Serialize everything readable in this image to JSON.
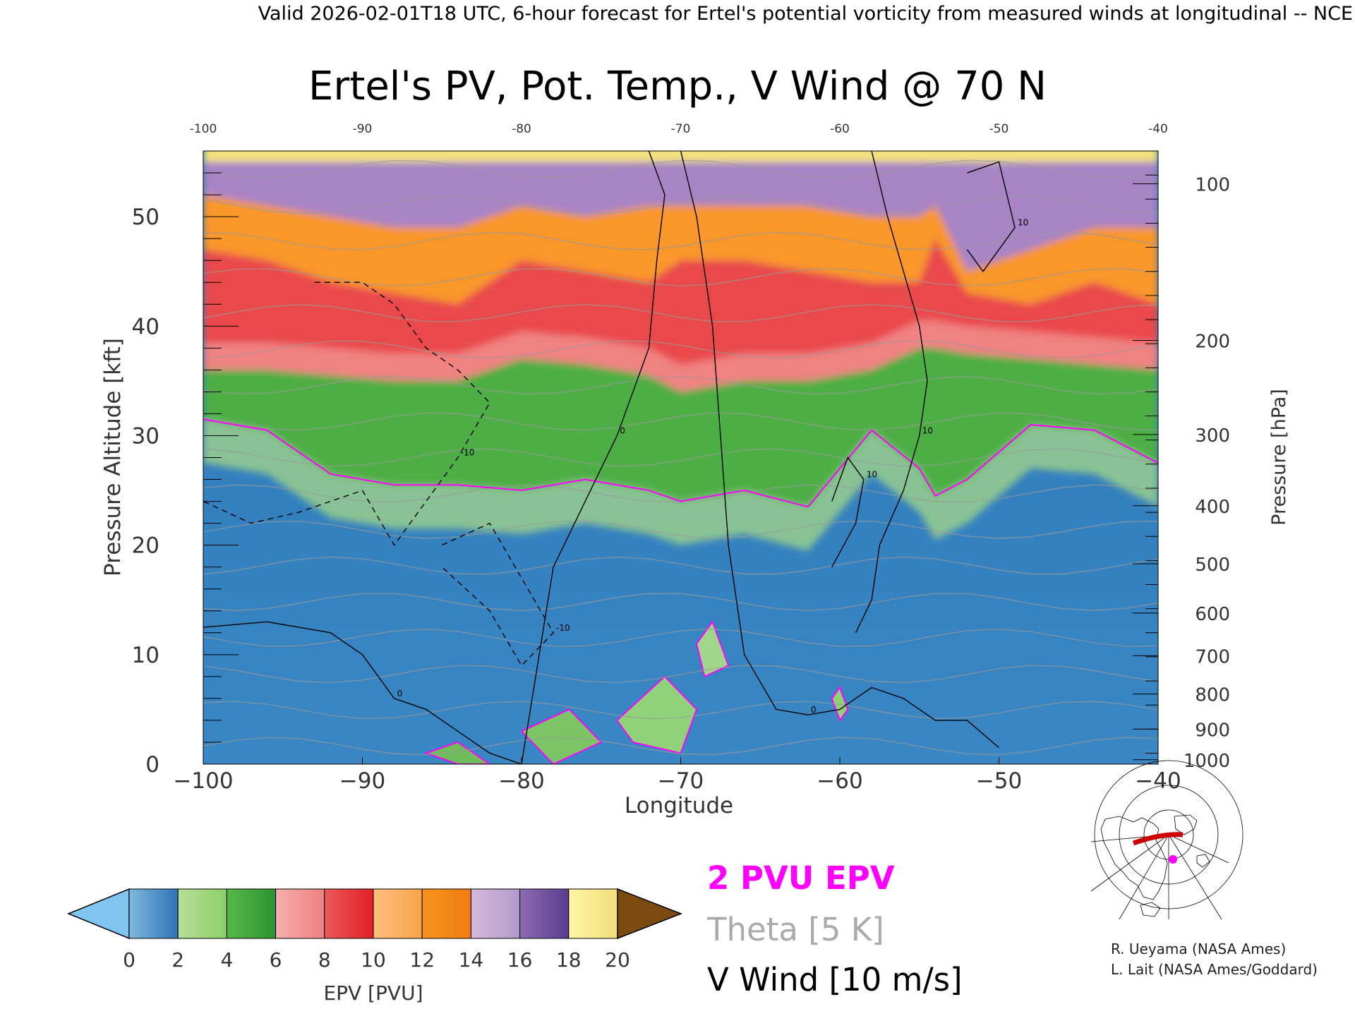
{
  "header": {
    "valid_line": "Valid 2026-02-01T18 UTC, 6-hour forecast for Ertel's potential vorticity from measured winds at longitudinal -- NCE"
  },
  "chart_data": {
    "type": "heatmap",
    "title": "Ertel's PV, Pot. Temp., V Wind @ 70 N",
    "xlabel": "Longitude",
    "ylabel": "Pressure Altitude [kft]",
    "ylabel_right": "Pressure [hPa]",
    "xlim": [
      -100,
      -40
    ],
    "ylim": [
      0,
      56
    ],
    "x_ticks": [
      -100,
      -90,
      -80,
      -70,
      -60,
      -50,
      -40
    ],
    "x_tick_labels": [
      "−100",
      "−90",
      "−80",
      "−70",
      "−60",
      "−50",
      "−40"
    ],
    "x_top_tick_labels": [
      "-100",
      "-90",
      "-80",
      "-70",
      "-60",
      "-50",
      "-40"
    ],
    "y_ticks": [
      0,
      10,
      20,
      30,
      40,
      50
    ],
    "y_tick_labels": [
      "0",
      "10",
      "20",
      "30",
      "40",
      "50"
    ],
    "pressure_ticks": [
      {
        "label": "100",
        "alt": 53.0
      },
      {
        "label": "200",
        "alt": 38.7
      },
      {
        "label": "300",
        "alt": 30.1
      },
      {
        "label": "400",
        "alt": 23.6
      },
      {
        "label": "500",
        "alt": 18.3
      },
      {
        "label": "600",
        "alt": 13.8
      },
      {
        "label": "700",
        "alt": 9.9
      },
      {
        "label": "800",
        "alt": 6.4
      },
      {
        "label": "900",
        "alt": 3.2
      },
      {
        "label": "1000",
        "alt": 0.4
      }
    ],
    "epv_band_altitudes_kft": {
      "longitude": [
        -100,
        -96,
        -92,
        -88,
        -84,
        -80,
        -76,
        -72,
        -70,
        -66,
        -62,
        -58,
        -55,
        -54,
        -52,
        -48,
        -44,
        -40
      ],
      "tropopause_2pvu": [
        31.5,
        30.5,
        26.5,
        25.5,
        25.5,
        25,
        26,
        25,
        24,
        25,
        23.5,
        30.5,
        27,
        24.5,
        26,
        31,
        30.5,
        27.5
      ],
      "green_top": [
        36,
        36,
        35.5,
        35,
        35,
        37,
        36.5,
        35.5,
        34,
        35,
        35,
        36,
        38,
        38,
        37.5,
        37,
        36.5,
        36
      ],
      "red_top": [
        47,
        46,
        44,
        43,
        42,
        46,
        45,
        44,
        46,
        46,
        45,
        44,
        44,
        48,
        43,
        42,
        44,
        42
      ],
      "orange_top": [
        52,
        51,
        50,
        49,
        49,
        51,
        50,
        51,
        51,
        51,
        51,
        50,
        50,
        51,
        45,
        47,
        49,
        49
      ]
    },
    "theta_contours_K": [
      250,
      260,
      270,
      280,
      290,
      300,
      310,
      320,
      330,
      340,
      350,
      360,
      370,
      380,
      390,
      400,
      410
    ],
    "v_wind_contours": [
      {
        "label": "0",
        "lon": [
          -100,
          -96,
          -92,
          -90,
          -88,
          -86,
          -84,
          -82,
          -80
        ],
        "alt": [
          12.5,
          13,
          12,
          10,
          6,
          5,
          3,
          1,
          0
        ]
      },
      {
        "label": "0",
        "lon": [
          -72,
          -71,
          -71.5,
          -72,
          -74,
          -76,
          -78,
          -80
        ],
        "alt": [
          56,
          52,
          46,
          38,
          30,
          24,
          18,
          0
        ]
      },
      {
        "label": "0",
        "lon": [
          -70,
          -69,
          -68,
          -67.5,
          -67,
          -66,
          -64,
          -62,
          -60,
          -58,
          -56,
          -54,
          -52,
          -50
        ],
        "alt": [
          56,
          50,
          40,
          30,
          20,
          10,
          5,
          4.5,
          5,
          7,
          6,
          4,
          4,
          1.5
        ]
      },
      {
        "label": "10",
        "lon": [
          -58,
          -57,
          -56,
          -55,
          -54.5,
          -55,
          -56,
          -57.5,
          -58,
          -59
        ],
        "alt": [
          56,
          50,
          45,
          40,
          35,
          30,
          25,
          20,
          15,
          12
        ]
      },
      {
        "label": "-10",
        "lon": [
          -93,
          -90,
          -88,
          -86,
          -84,
          -82,
          -84,
          -86,
          -88,
          -90,
          -94,
          -97,
          -100
        ],
        "alt": [
          44,
          44,
          42,
          38,
          36,
          33,
          28,
          24,
          20,
          25,
          23,
          22,
          24
        ]
      },
      {
        "label": "-10",
        "lon": [
          -85,
          -82,
          -80,
          -78,
          -80,
          -82,
          -85
        ],
        "alt": [
          20,
          22,
          17,
          12,
          9,
          14,
          18
        ]
      },
      {
        "label": "10",
        "lon": [
          -60.5,
          -59,
          -58.5,
          -59.5,
          -60.5
        ],
        "alt": [
          18,
          22,
          26,
          28,
          24
        ]
      },
      {
        "label": "10",
        "lon": [
          -52,
          -50,
          -49,
          -51,
          -52
        ],
        "alt": [
          54,
          55,
          49,
          45,
          47
        ]
      }
    ],
    "annotations": [
      "2 PVU EPV",
      "Theta [5 K]",
      "V Wind [10 m/s]"
    ]
  },
  "colorbar": {
    "label": "EPV [PVU]",
    "ticks": [
      "0",
      "2",
      "4",
      "6",
      "8",
      "10",
      "12",
      "14",
      "16",
      "18",
      "20"
    ],
    "under_color": "#7fc5ef",
    "over_color": "#7b4a10",
    "segments": [
      [
        "#7fb8dc",
        "#2c75b6"
      ],
      [
        "#b8df98",
        "#8ccf6a"
      ],
      [
        "#58b84a",
        "#2b942f"
      ],
      [
        "#f4b0ae",
        "#ef8080"
      ],
      [
        "#ea5a5a",
        "#e21f26"
      ],
      [
        "#fdc080",
        "#f9a248"
      ],
      [
        "#f7941d",
        "#f07c10"
      ],
      [
        "#d9b8dc",
        "#b09acb"
      ],
      [
        "#8c6bb1",
        "#5a3b8f"
      ],
      [
        "#fef5a8",
        "#f3dd7c"
      ]
    ]
  },
  "legend": {
    "pvu_label": "2 PVU EPV",
    "pvu_color": "#ff00ff",
    "theta_label": "Theta [5 K]",
    "theta_color": "#a9a9a9",
    "wind_label": "V Wind [10 m/s]",
    "wind_color": "#000000"
  },
  "credits": {
    "line1": "R. Ueyama (NASA Ames)",
    "line2": "L. Lait (NASA Ames/Goddard)"
  }
}
